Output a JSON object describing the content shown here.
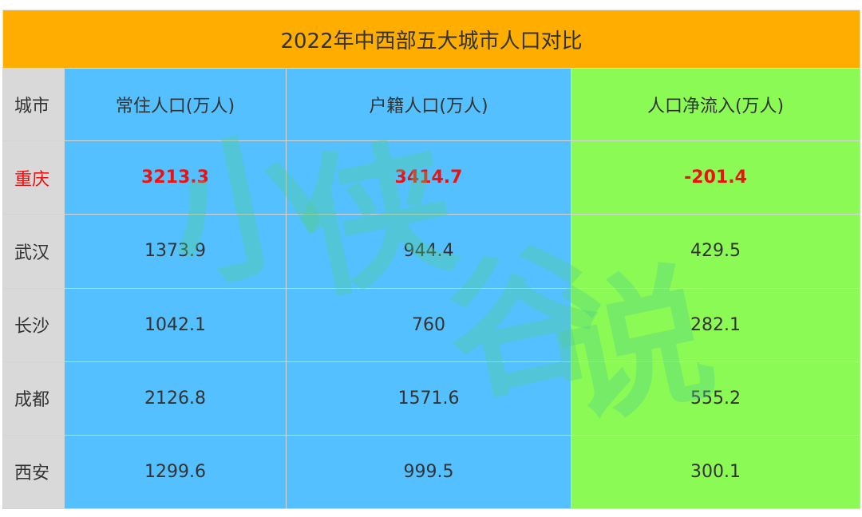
{
  "chart_data": {
    "type": "table",
    "title": "2022年中西部五大城市人口对比",
    "columns": [
      "城市",
      "常住人口(万人)",
      "户籍人口(万人)",
      "人口净流入(万人)"
    ],
    "rows": [
      {
        "city": "重庆",
        "resident": "3213.3",
        "registered": "3414.7",
        "net_inflow": "-201.4",
        "highlight": true
      },
      {
        "city": "武汉",
        "resident": "1373.9",
        "registered": "944.4",
        "net_inflow": "429.5"
      },
      {
        "city": "长沙",
        "resident": "1042.1",
        "registered": "760",
        "net_inflow": "282.1"
      },
      {
        "city": "成都",
        "resident": "2126.8",
        "registered": "1571.6",
        "net_inflow": "555.2"
      },
      {
        "city": "西安",
        "resident": "1299.6",
        "registered": "999.5",
        "net_inflow": "300.1"
      }
    ]
  },
  "watermark": [
    "小",
    "侠",
    "谷",
    "说"
  ],
  "colors": {
    "title_bg": "#ffae00",
    "city_col": "#d9d9d9",
    "population_cols": "#54c0ff",
    "net_inflow_col": "#8bfa55",
    "highlight_text": "#ee1111",
    "watermark": "#4fcf8a"
  }
}
